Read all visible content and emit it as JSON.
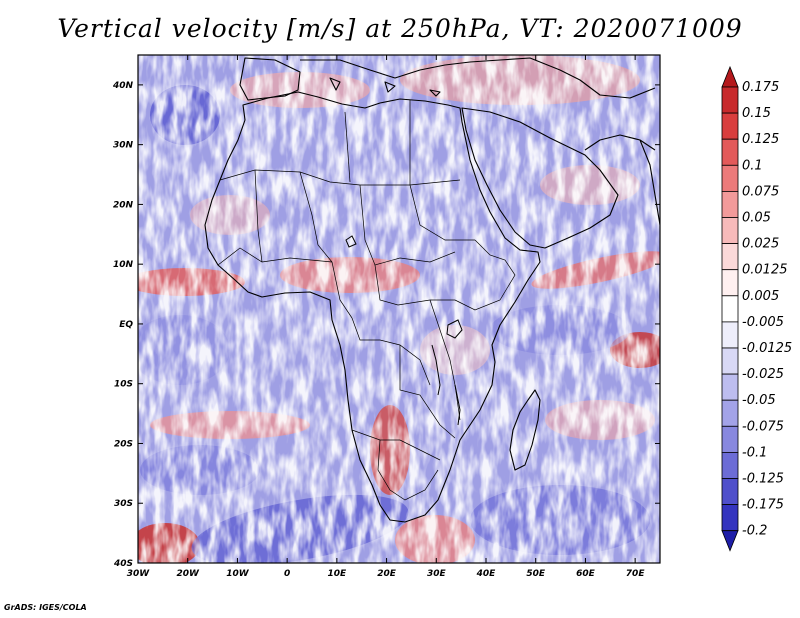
{
  "title": "Vertical velocity [m/s] at 250hPa, VT: 2020071009",
  "credit": "GrADS: IGES/COLA",
  "map": {
    "lon_range": [
      -30,
      75
    ],
    "lat_range": [
      -40,
      45
    ],
    "lon_ticks": [
      {
        "value": -30,
        "label": "30W"
      },
      {
        "value": -20,
        "label": "20W"
      },
      {
        "value": -10,
        "label": "10W"
      },
      {
        "value": 0,
        "label": "0"
      },
      {
        "value": 10,
        "label": "10E"
      },
      {
        "value": 20,
        "label": "20E"
      },
      {
        "value": 30,
        "label": "30E"
      },
      {
        "value": 40,
        "label": "40E"
      },
      {
        "value": 50,
        "label": "50E"
      },
      {
        "value": 60,
        "label": "60E"
      },
      {
        "value": 70,
        "label": "70E"
      }
    ],
    "lat_ticks": [
      {
        "value": 40,
        "label": "40N"
      },
      {
        "value": 30,
        "label": "30N"
      },
      {
        "value": 20,
        "label": "20N"
      },
      {
        "value": 10,
        "label": "10N"
      },
      {
        "value": 0,
        "label": "EQ"
      },
      {
        "value": -10,
        "label": "10S"
      },
      {
        "value": -20,
        "label": "20S"
      },
      {
        "value": -30,
        "label": "30S"
      },
      {
        "value": -40,
        "label": "40S"
      }
    ]
  },
  "colorbar": {
    "levels": [
      "0.175",
      "0.15",
      "0.125",
      "0.1",
      "0.075",
      "0.05",
      "0.025",
      "0.0125",
      "0.005",
      "-0.005",
      "-0.0125",
      "-0.025",
      "-0.05",
      "-0.075",
      "-0.1",
      "-0.125",
      "-0.175",
      "-0.2"
    ],
    "colors": [
      "#b4191c",
      "#c82a2c",
      "#d93e3e",
      "#e35a5a",
      "#ec7a7a",
      "#f29a9a",
      "#f7baba",
      "#fbd9d9",
      "#fff0f0",
      "#ffffff",
      "#eeeefb",
      "#d8d8f5",
      "#bdbdef",
      "#a3a3e8",
      "#8888df",
      "#6c6cd6",
      "#4f4fcb",
      "#3434bf",
      "#1e1ea8"
    ]
  }
}
